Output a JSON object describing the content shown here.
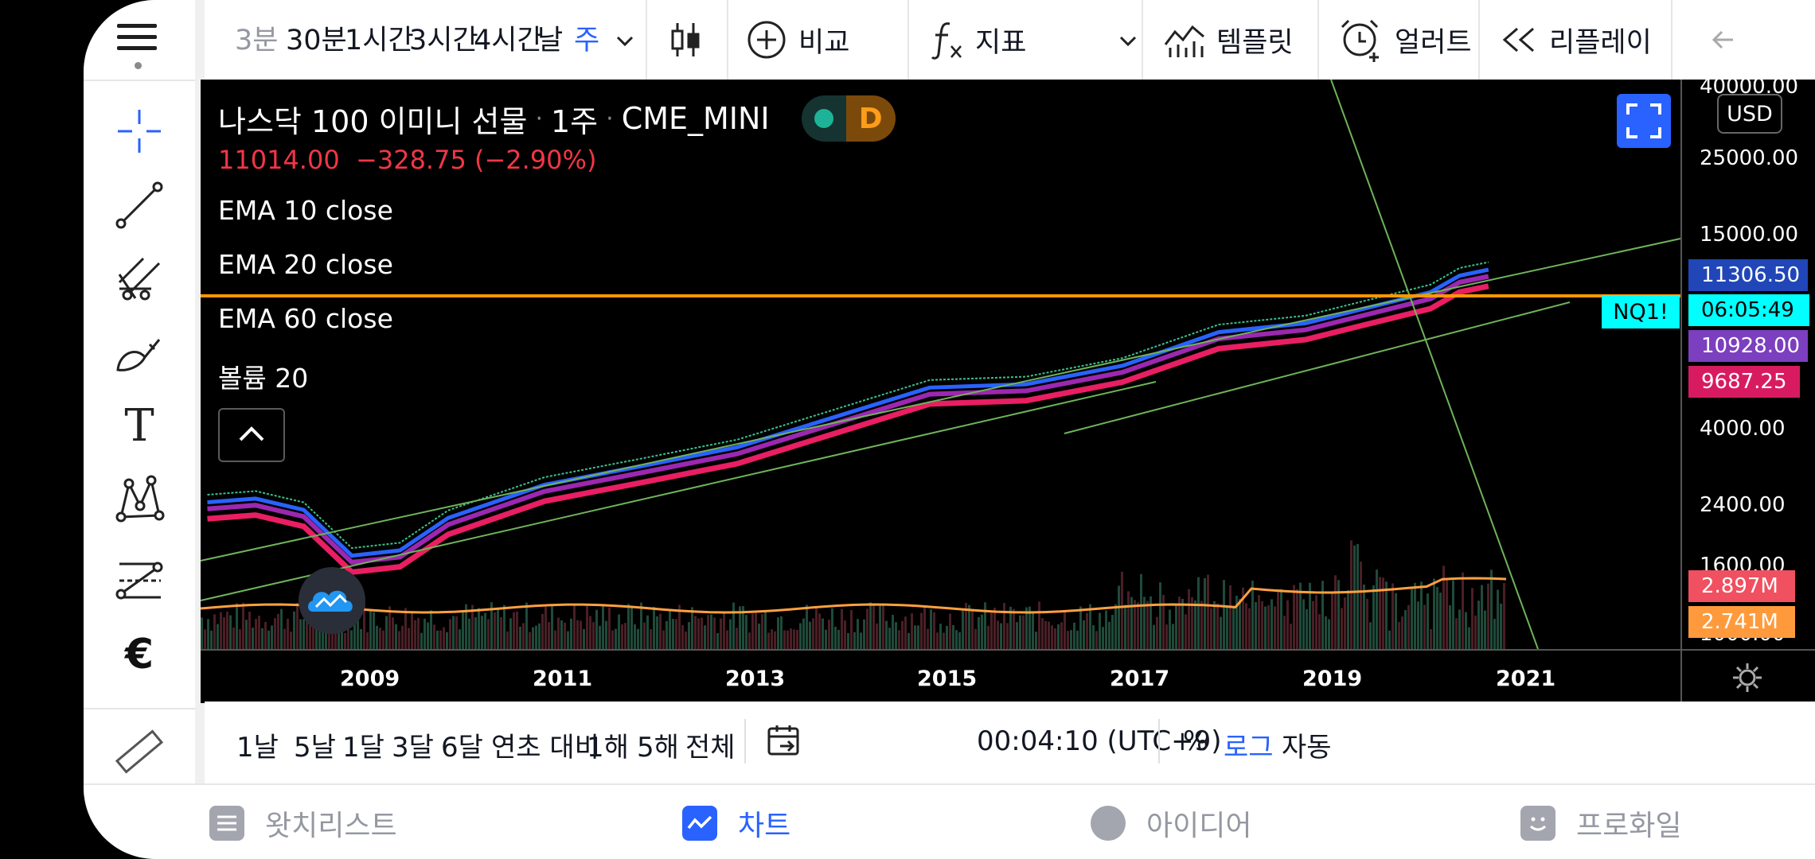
{
  "toolbar": {
    "timeframes": [
      {
        "label": "3분",
        "state": "dim"
      },
      {
        "label": "30분",
        "state": "normal"
      },
      {
        "label": "1시간",
        "state": "normal"
      },
      {
        "label": "3시간",
        "state": "normal"
      },
      {
        "label": "4시간",
        "state": "normal"
      },
      {
        "label": "날",
        "state": "normal"
      },
      {
        "label": "주",
        "state": "active"
      }
    ],
    "compare_label": "비교",
    "indicators_label": "지표",
    "templates_label": "템플릿",
    "alerts_label": "얼러트",
    "replay_label": "리플레이"
  },
  "chart": {
    "symbol_name": "나스닥 100 이미니 선물",
    "interval": "1주",
    "exchange": "CME_MINI",
    "badge_letter": "D",
    "last_price": "11014.00",
    "change": "−328.75 (−2.90%)",
    "indicators": [
      "EMA 10 close",
      "EMA 20 close",
      "EMA 60 close",
      "볼륨 20"
    ],
    "currency": "USD",
    "symbol_tag": "NQ1!",
    "price_axis": [
      {
        "label": "40000.00",
        "price": 40000
      },
      {
        "label": "25000.00",
        "price": 25000
      },
      {
        "label": "15000.00",
        "price": 15000
      },
      {
        "label": "4000.00",
        "price": 4000
      },
      {
        "label": "2400.00",
        "price": 2400
      },
      {
        "label": "1600.00",
        "price": 1600
      },
      {
        "label": "1000.00",
        "price": 1000
      }
    ],
    "price_tags": [
      {
        "label": "11306.50",
        "color": "#2046b8"
      },
      {
        "label": "06:05:49",
        "color": "#00ffff"
      },
      {
        "label": "10928.00",
        "color": "#7b3fbf"
      },
      {
        "label": "9687.25",
        "color": "#d81b60"
      },
      {
        "label": "2.897M",
        "color": "#f0505f"
      },
      {
        "label": "2.741M",
        "color": "#ff9a3c"
      }
    ],
    "years": [
      "2009",
      "2011",
      "2013",
      "2015",
      "2017",
      "2019",
      "2021"
    ],
    "colors": {
      "ema10": "#2962ff",
      "ema20": "#9c27b0",
      "ema60": "#e91e63",
      "hline": "#ff9800",
      "trend": "#6fb35a",
      "volume_ma": "#ffa040"
    }
  },
  "chart_data": {
    "type": "line",
    "title": "나스닥 100 이미니 선물 · 1주 · CME_MINI",
    "xlabel": "",
    "ylabel": "",
    "log_scale": true,
    "x": [
      2007.5,
      2008.0,
      2008.5,
      2009.0,
      2009.5,
      2010.0,
      2011.0,
      2012.0,
      2013.0,
      2014.0,
      2015.0,
      2016.0,
      2017.0,
      2018.0,
      2018.9,
      2019.5,
      2020.2,
      2020.5,
      2020.8
    ],
    "series": [
      {
        "name": "EMA 60 close",
        "values": [
          1950,
          2000,
          1850,
          1350,
          1400,
          1750,
          2200,
          2500,
          2850,
          3500,
          4300,
          4400,
          5000,
          6300,
          6700,
          7400,
          8300,
          9300,
          9687
        ]
      }
    ],
    "ylim": [
      900,
      45000
    ],
    "grid": false,
    "legend": "top-left"
  },
  "rangebar": {
    "ranges": [
      "1날",
      "5날",
      "1달",
      "3달",
      "6달",
      "연초 대비",
      "1해",
      "5해",
      "전체"
    ],
    "time": "00:04:10 (UTC+9)",
    "percent": "%",
    "log": "로그",
    "auto": "자동"
  },
  "nav": {
    "watchlist": "왓치리스트",
    "chart": "차트",
    "ideas": "아이디어",
    "profile": "프로화일"
  },
  "tools": {
    "text_tool_glyph": "T",
    "currency_glyph": "€"
  }
}
